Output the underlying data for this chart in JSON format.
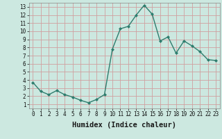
{
  "x": [
    0,
    1,
    2,
    3,
    4,
    5,
    6,
    7,
    8,
    9,
    10,
    11,
    12,
    13,
    14,
    15,
    16,
    17,
    18,
    19,
    20,
    21,
    22,
    23
  ],
  "y": [
    3.7,
    2.6,
    2.2,
    2.7,
    2.2,
    1.9,
    1.5,
    1.2,
    1.6,
    2.2,
    7.8,
    10.3,
    10.6,
    12.0,
    13.2,
    12.1,
    8.8,
    9.3,
    7.3,
    8.8,
    8.2,
    7.5,
    6.5,
    6.4
  ],
  "line_color": "#2e7d6e",
  "marker_color": "#2e7d6e",
  "bg_color": "#cce8e0",
  "grid_color": "#d0a0a0",
  "xlabel": "Humidex (Indice chaleur)",
  "xlim": [
    -0.5,
    23.5
  ],
  "ylim": [
    0.5,
    13.5
  ],
  "xticks": [
    0,
    1,
    2,
    3,
    4,
    5,
    6,
    7,
    8,
    9,
    10,
    11,
    12,
    13,
    14,
    15,
    16,
    17,
    18,
    19,
    20,
    21,
    22,
    23
  ],
  "yticks": [
    1,
    2,
    3,
    4,
    5,
    6,
    7,
    8,
    9,
    10,
    11,
    12,
    13
  ],
  "tick_fontsize": 5.5,
  "xlabel_fontsize": 7.5
}
